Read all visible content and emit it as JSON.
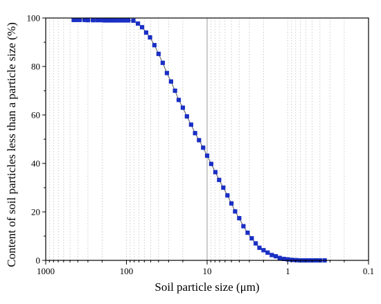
{
  "chart_data": {
    "type": "scatter",
    "xlabel": "Soil particle size (μm)",
    "ylabel": "Content of soil particles less than a particle size (%)",
    "x_scale": "log",
    "x_reversed": true,
    "xlim": [
      1000,
      0.1
    ],
    "ylim": [
      0,
      100
    ],
    "x_tick_labels": [
      "1000",
      "100",
      "10",
      "1",
      "0.1"
    ],
    "y_tick_labels": [
      "0",
      "20",
      "40",
      "60",
      "80",
      "100"
    ],
    "grid": "vertical dotted lines at log-minor ticks",
    "marker": "square",
    "series_color": "#1a2fc4",
    "line_color": "#555555",
    "x": [
      450,
      420,
      380,
      330,
      300,
      260,
      230,
      205,
      185,
      165,
      150,
      135,
      120,
      107,
      95,
      82,
      72,
      64,
      57,
      51,
      45,
      40,
      35.5,
      31.5,
      28,
      25,
      22.5,
      20,
      17.8,
      15.8,
      14.1,
      12.6,
      11.2,
      10,
      8.9,
      7.9,
      7.1,
      6.3,
      5.6,
      5,
      4.5,
      4,
      3.55,
      3.15,
      2.8,
      2.5,
      2.25,
      2,
      1.78,
      1.58,
      1.41,
      1.26,
      1.12,
      1,
      0.89,
      0.79,
      0.71,
      0.63,
      0.56,
      0.5,
      0.45,
      0.4,
      0.35
    ],
    "y": [
      99.2,
      99.2,
      99.2,
      99.2,
      99.1,
      99.1,
      99.1,
      99.1,
      99.0,
      99.0,
      99.0,
      99.0,
      99.0,
      99.0,
      99.0,
      98.9,
      97.7,
      96.2,
      94.0,
      92.0,
      88.8,
      85.2,
      81.5,
      77.3,
      73.8,
      70.0,
      66.2,
      63.0,
      59.4,
      56.0,
      52.5,
      49.6,
      46.5,
      43.2,
      39.8,
      36.4,
      33.2,
      30.0,
      26.8,
      23.5,
      20.2,
      17.4,
      14.1,
      11.4,
      9.1,
      7.0,
      5.2,
      4.2,
      3.2,
      2.2,
      1.7,
      1.0,
      0.6,
      0.4,
      0.2,
      0.1,
      0.0,
      0.0,
      0.0,
      0.0,
      0.0,
      0.0,
      0.0
    ]
  }
}
